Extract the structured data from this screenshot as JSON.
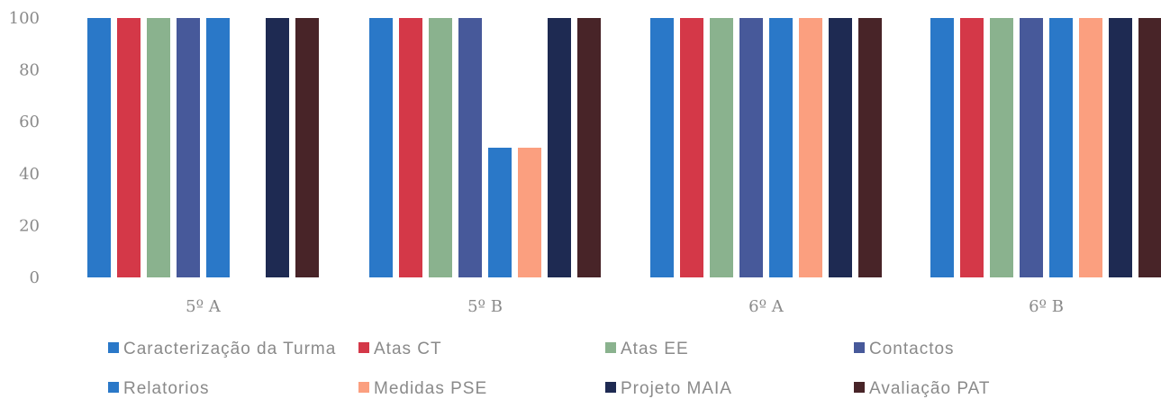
{
  "chart_data": {
    "type": "bar",
    "categories": [
      "5º A",
      "5º B",
      "6º A",
      "6º B"
    ],
    "series": [
      {
        "name": "Caracterização da Turma",
        "color": "#2a78c8",
        "values": [
          100,
          100,
          100,
          100
        ]
      },
      {
        "name": "Atas CT",
        "color": "#d43848",
        "values": [
          100,
          100,
          100,
          100
        ]
      },
      {
        "name": "Atas EE",
        "color": "#8ab28e",
        "values": [
          100,
          100,
          100,
          100
        ]
      },
      {
        "name": "Contactos",
        "color": "#47599a",
        "values": [
          100,
          100,
          100,
          100
        ]
      },
      {
        "name": "Relatorios",
        "color": "#2a78c8",
        "values": [
          100,
          50,
          100,
          100
        ]
      },
      {
        "name": "Medidas PSE",
        "color": "#fb9f7f",
        "values": [
          0,
          50,
          100,
          100
        ]
      },
      {
        "name": "Projeto MAIA",
        "color": "#1e2a52",
        "values": [
          100,
          100,
          100,
          100
        ]
      },
      {
        "name": "Avaliação PAT",
        "color": "#482428",
        "values": [
          100,
          100,
          100,
          100
        ]
      }
    ],
    "ylim": [
      0,
      100
    ],
    "yticks": [
      "0",
      "20",
      "40",
      "60",
      "80",
      "100"
    ],
    "grid": false,
    "legend_position": "bottom"
  }
}
